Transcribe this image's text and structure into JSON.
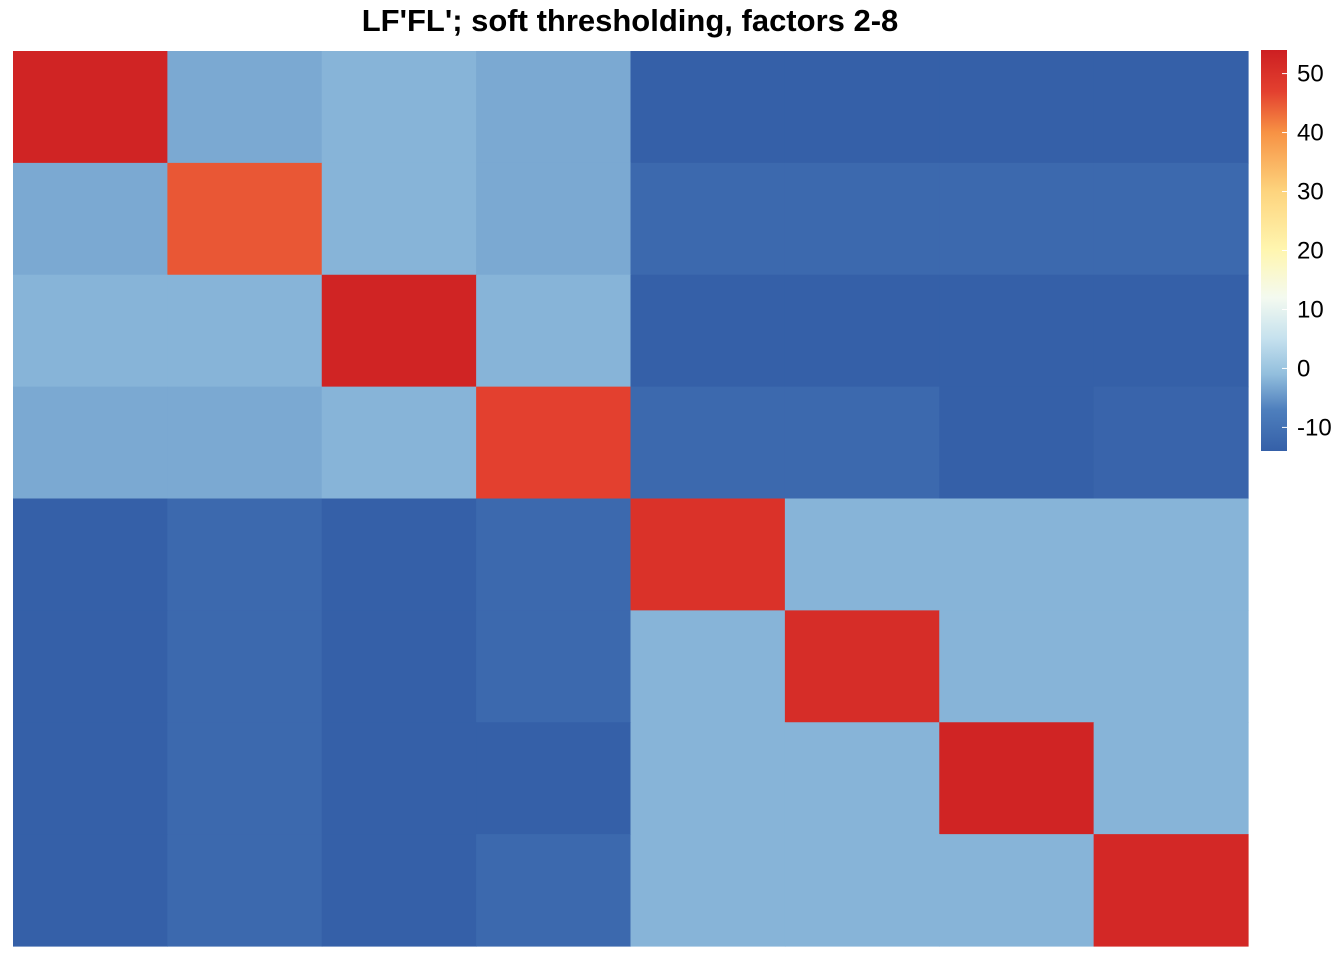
{
  "chart_data": {
    "type": "heatmap",
    "title": "LF'FL'; soft thresholding, factors 2-8",
    "xlabel": "",
    "ylabel": "",
    "rows": 8,
    "cols": 8,
    "values": [
      [
        53,
        -3,
        -2,
        -3,
        -14,
        -14,
        -14,
        -14
      ],
      [
        -3,
        45,
        -2,
        -3,
        -12,
        -12,
        -12,
        -12
      ],
      [
        -2,
        -2,
        53,
        -2,
        -14,
        -14,
        -14,
        -14
      ],
      [
        -3,
        -3,
        -2,
        47,
        -12,
        -12,
        -14,
        -13
      ],
      [
        -14,
        -12,
        -14,
        -12,
        50,
        -2,
        -2,
        -2
      ],
      [
        -14,
        -12,
        -14,
        -12,
        -2,
        51,
        -2,
        -2
      ],
      [
        -14,
        -12,
        -14,
        -14,
        -2,
        -2,
        53,
        -2
      ],
      [
        -14,
        -12,
        -14,
        -12,
        -2,
        -2,
        -2,
        52
      ]
    ],
    "color_range": [
      -14,
      54
    ],
    "color_stops": [
      {
        "value": -14,
        "color": "#3560A8"
      },
      {
        "value": -7,
        "color": "#4E7FBD"
      },
      {
        "value": -1,
        "color": "#92BEDD"
      },
      {
        "value": 5,
        "color": "#C5E1EE"
      },
      {
        "value": 12,
        "color": "#F4FAF0"
      },
      {
        "value": 20,
        "color": "#FFF6B0"
      },
      {
        "value": 30,
        "color": "#FDD47E"
      },
      {
        "value": 40,
        "color": "#F79244"
      },
      {
        "value": 47,
        "color": "#E3402F"
      },
      {
        "value": 54,
        "color": "#CD1F22"
      }
    ],
    "legend": {
      "position": "right",
      "ticks": [
        50,
        40,
        30,
        20,
        10,
        0,
        -10
      ]
    }
  }
}
